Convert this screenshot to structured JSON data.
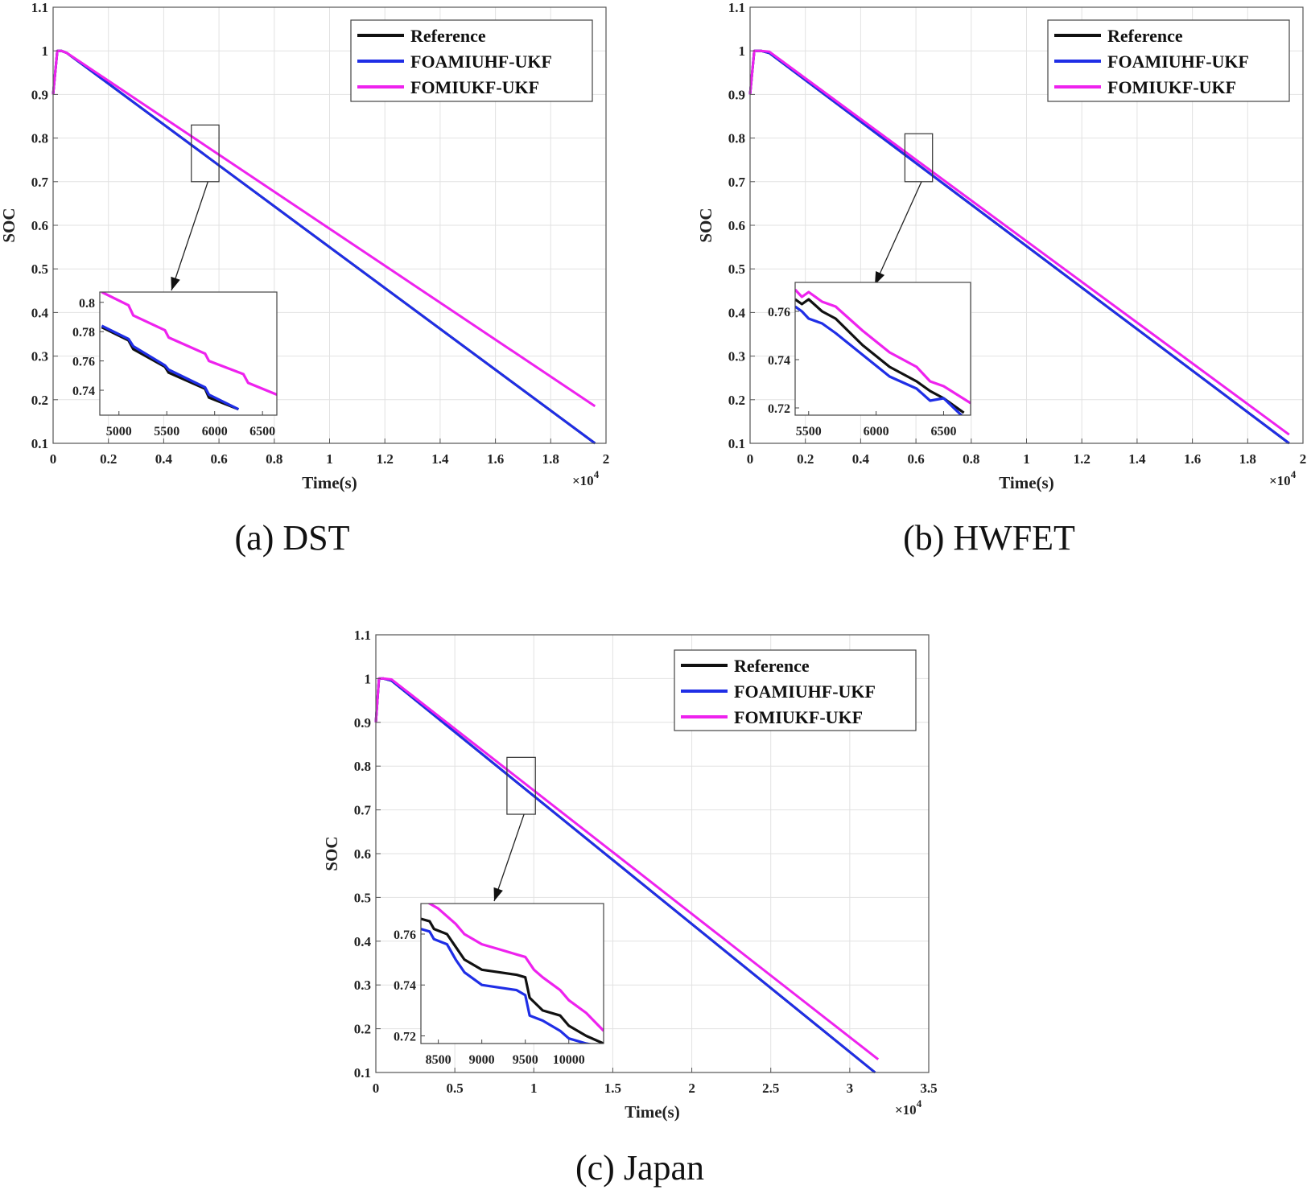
{
  "colors": {
    "reference": "#111111",
    "foamiuhf_ukf": "#1f2ee6",
    "fomiukf_ukf": "#ee22ee"
  },
  "chart_data": [
    {
      "id": "dst",
      "type": "line",
      "caption": "(a) DST",
      "xlabel": "Time(s)",
      "ylabel": "SOC",
      "x_multiplier": "×10",
      "x_multiplier_exp": "4",
      "xlim": [
        0,
        2
      ],
      "ylim": [
        0.1,
        1.1
      ],
      "xticks": [
        0,
        0.2,
        0.4,
        0.6,
        0.8,
        1,
        1.2,
        1.4,
        1.6,
        1.8,
        2
      ],
      "xtick_labels": [
        "0",
        "0.2",
        "0.4",
        "0.6",
        "0.8",
        "1",
        "1.2",
        "1.4",
        "1.6",
        "1.8",
        "2"
      ],
      "yticks": [
        0.1,
        0.2,
        0.3,
        0.4,
        0.5,
        0.6,
        0.7,
        0.8,
        0.9,
        1,
        1.1
      ],
      "ytick_labels": [
        "0.1",
        "0.2",
        "0.3",
        "0.4",
        "0.5",
        "0.6",
        "0.7",
        "0.8",
        "0.9",
        "1",
        "1.1"
      ],
      "grid": true,
      "legend_position": "top-right",
      "series": [
        {
          "name": "Reference",
          "color_key": "reference",
          "x": [
            0,
            0.015,
            0.03,
            0.05,
            1.96
          ],
          "y": [
            0.9,
            1.0,
            1.0,
            0.995,
            0.1
          ]
        },
        {
          "name": "FOAMIUHF-UKF",
          "color_key": "foamiuhf_ukf",
          "x": [
            0,
            0.015,
            0.03,
            0.05,
            1.96
          ],
          "y": [
            0.9,
            1.0,
            1.0,
            0.995,
            0.1
          ]
        },
        {
          "name": "FOMIUKF-UKF",
          "color_key": "fomiukf_ukf",
          "x": [
            0,
            0.015,
            0.03,
            0.05,
            1.96
          ],
          "y": [
            0.9,
            1.0,
            1.0,
            0.995,
            0.185
          ]
        }
      ],
      "zoom_region": {
        "xlim": [
          0.5,
          0.6
        ],
        "ylim": [
          0.7,
          0.83
        ]
      },
      "inset": {
        "xlim": [
          4800,
          6650
        ],
        "ylim": [
          0.723,
          0.807
        ],
        "xticks": [
          5000,
          5500,
          6000,
          6500
        ],
        "xtick_labels": [
          "5000",
          "5500",
          "6000",
          "6500"
        ],
        "yticks": [
          0.74,
          0.76,
          0.78,
          0.8
        ],
        "ytick_labels": [
          "0.74",
          "0.76",
          "0.78",
          "0.8"
        ],
        "series": [
          {
            "name": "Reference",
            "color_key": "reference",
            "x": [
              4820,
              5100,
              5150,
              5480,
              5520,
              5900,
              5940,
              6250
            ],
            "y": [
              0.783,
              0.774,
              0.768,
              0.756,
              0.752,
              0.741,
              0.735,
              0.727
            ]
          },
          {
            "name": "FOAMIUHF-UKF",
            "color_key": "foamiuhf_ukf",
            "x": [
              4820,
              5100,
              5150,
              5480,
              5520,
              5900,
              5940,
              6250
            ],
            "y": [
              0.784,
              0.775,
              0.77,
              0.757,
              0.754,
              0.742,
              0.737,
              0.727
            ]
          },
          {
            "name": "FOMIUKF-UKF",
            "color_key": "fomiukf_ukf",
            "x": [
              4820,
              5100,
              5150,
              5480,
              5520,
              5900,
              5940,
              6300,
              6350,
              6650
            ],
            "y": [
              0.807,
              0.798,
              0.791,
              0.781,
              0.776,
              0.765,
              0.76,
              0.751,
              0.745,
              0.737
            ]
          }
        ]
      }
    },
    {
      "id": "hwfet",
      "type": "line",
      "caption": "(b) HWFET",
      "xlabel": "Time(s)",
      "ylabel": "SOC",
      "x_multiplier": "×10",
      "x_multiplier_exp": "4",
      "xlim": [
        0,
        2
      ],
      "ylim": [
        0.1,
        1.1
      ],
      "xticks": [
        0,
        0.2,
        0.4,
        0.6,
        0.8,
        1,
        1.2,
        1.4,
        1.6,
        1.8,
        2
      ],
      "xtick_labels": [
        "0",
        "0.2",
        "0.4",
        "0.6",
        "0.8",
        "1",
        "1.2",
        "1.4",
        "1.6",
        "1.8",
        "2"
      ],
      "yticks": [
        0.1,
        0.2,
        0.3,
        0.4,
        0.5,
        0.6,
        0.7,
        0.8,
        0.9,
        1,
        1.1
      ],
      "ytick_labels": [
        "0.1",
        "0.2",
        "0.3",
        "0.4",
        "0.5",
        "0.6",
        "0.7",
        "0.8",
        "0.9",
        "1",
        "1.1"
      ],
      "grid": true,
      "legend_position": "top-right",
      "series": [
        {
          "name": "Reference",
          "color_key": "reference",
          "x": [
            0,
            0.015,
            0.04,
            0.07,
            1.95
          ],
          "y": [
            0.9,
            1.0,
            1.0,
            0.995,
            0.1
          ]
        },
        {
          "name": "FOAMIUHF-UKF",
          "color_key": "foamiuhf_ukf",
          "x": [
            0,
            0.015,
            0.04,
            0.07,
            1.95
          ],
          "y": [
            0.9,
            1.0,
            1.0,
            0.995,
            0.1
          ]
        },
        {
          "name": "FOMIUKF-UKF",
          "color_key": "fomiukf_ukf",
          "x": [
            0,
            0.015,
            0.04,
            0.07,
            1.95
          ],
          "y": [
            0.9,
            1.0,
            1.0,
            0.998,
            0.12
          ]
        }
      ],
      "zoom_region": {
        "xlim": [
          0.56,
          0.66
        ],
        "ylim": [
          0.7,
          0.81
        ]
      },
      "inset": {
        "xlim": [
          5400,
          6700
        ],
        "ylim": [
          0.717,
          0.772
        ],
        "xticks": [
          5500,
          6000,
          6500
        ],
        "xtick_labels": [
          "5500",
          "6000",
          "6500"
        ],
        "yticks": [
          0.72,
          0.74,
          0.76
        ],
        "ytick_labels": [
          "0.72",
          "0.74",
          "0.76"
        ],
        "series": [
          {
            "name": "Reference",
            "color_key": "reference",
            "x": [
              5400,
              5450,
              5500,
              5600,
              5700,
              5900,
              6100,
              6300,
              6400,
              6500,
              6650
            ],
            "y": [
              0.765,
              0.763,
              0.765,
              0.76,
              0.757,
              0.746,
              0.737,
              0.731,
              0.727,
              0.724,
              0.718
            ]
          },
          {
            "name": "FOAMIUHF-UKF",
            "color_key": "foamiuhf_ukf",
            "x": [
              5400,
              5450,
              5500,
              5600,
              5700,
              5900,
              6100,
              6300,
              6400,
              6500,
              6650
            ],
            "y": [
              0.762,
              0.76,
              0.757,
              0.755,
              0.751,
              0.742,
              0.733,
              0.728,
              0.723,
              0.724,
              0.716
            ]
          },
          {
            "name": "FOMIUKF-UKF",
            "color_key": "fomiukf_ukf",
            "x": [
              5400,
              5450,
              5500,
              5600,
              5700,
              5900,
              6100,
              6300,
              6400,
              6500,
              6700
            ],
            "y": [
              0.769,
              0.766,
              0.768,
              0.764,
              0.762,
              0.752,
              0.743,
              0.737,
              0.731,
              0.729,
              0.722
            ]
          }
        ]
      }
    },
    {
      "id": "japan",
      "type": "line",
      "caption": "(c) Japan",
      "xlabel": "Time(s)",
      "ylabel": "SOC",
      "x_multiplier": "×10",
      "x_multiplier_exp": "4",
      "xlim": [
        0,
        3.5
      ],
      "ylim": [
        0.1,
        1.1
      ],
      "xticks": [
        0,
        0.5,
        1,
        1.5,
        2,
        2.5,
        3,
        3.5
      ],
      "xtick_labels": [
        "0",
        "0.5",
        "1",
        "1.5",
        "2",
        "2.5",
        "3",
        "3.5"
      ],
      "yticks": [
        0.1,
        0.2,
        0.3,
        0.4,
        0.5,
        0.6,
        0.7,
        0.8,
        0.9,
        1,
        1.1
      ],
      "ytick_labels": [
        "0.1",
        "0.2",
        "0.3",
        "0.4",
        "0.5",
        "0.6",
        "0.7",
        "0.8",
        "0.9",
        "1",
        "1.1"
      ],
      "grid": true,
      "legend_position": "top-right",
      "series": [
        {
          "name": "Reference",
          "color_key": "reference",
          "x": [
            0,
            0.02,
            0.05,
            0.1,
            3.16
          ],
          "y": [
            0.9,
            1.0,
            1.0,
            0.995,
            0.1
          ]
        },
        {
          "name": "FOAMIUHF-UKF",
          "color_key": "foamiuhf_ukf",
          "x": [
            0,
            0.02,
            0.05,
            0.1,
            3.16
          ],
          "y": [
            0.9,
            1.0,
            1.0,
            0.995,
            0.1
          ]
        },
        {
          "name": "FOMIUKF-UKF",
          "color_key": "fomiukf_ukf",
          "x": [
            0,
            0.02,
            0.05,
            0.1,
            3.18
          ],
          "y": [
            0.9,
            1.0,
            1.0,
            0.998,
            0.13
          ]
        }
      ],
      "zoom_region": {
        "xlim": [
          0.83,
          1.01
        ],
        "ylim": [
          0.69,
          0.82
        ]
      },
      "inset": {
        "xlim": [
          8300,
          10400
        ],
        "ylim": [
          0.717,
          0.772
        ],
        "xticks": [
          8500,
          9000,
          9500,
          10000
        ],
        "xtick_labels": [
          "8500",
          "9000",
          "9500",
          "10000"
        ],
        "yticks": [
          0.72,
          0.74,
          0.76
        ],
        "ytick_labels": [
          "0.72",
          "0.74",
          "0.76"
        ],
        "series": [
          {
            "name": "Reference",
            "color_key": "reference",
            "x": [
              8300,
              8400,
              8450,
              8600,
              8700,
              8800,
              9000,
              9200,
              9400,
              9500,
              9550,
              9700,
              9900,
              10000,
              10200,
              10400
            ],
            "y": [
              0.766,
              0.765,
              0.762,
              0.76,
              0.755,
              0.75,
              0.746,
              0.745,
              0.744,
              0.743,
              0.735,
              0.73,
              0.728,
              0.724,
              0.72,
              0.717
            ]
          },
          {
            "name": "FOAMIUHF-UKF",
            "color_key": "foamiuhf_ukf",
            "x": [
              8300,
              8400,
              8450,
              8600,
              8700,
              8800,
              9000,
              9200,
              9400,
              9500,
              9550,
              9700,
              9900,
              10000,
              10200,
              10350
            ],
            "y": [
              0.762,
              0.761,
              0.758,
              0.756,
              0.75,
              0.745,
              0.74,
              0.739,
              0.738,
              0.736,
              0.728,
              0.726,
              0.722,
              0.719,
              0.717,
              0.716
            ]
          },
          {
            "name": "FOMIUKF-UKF",
            "color_key": "fomiukf_ukf",
            "x": [
              8300,
              8400,
              8500,
              8600,
              8700,
              8800,
              9000,
              9200,
              9400,
              9500,
              9600,
              9700,
              9900,
              10000,
              10200,
              10400
            ],
            "y": [
              0.775,
              0.772,
              0.77,
              0.767,
              0.764,
              0.76,
              0.756,
              0.754,
              0.752,
              0.751,
              0.746,
              0.743,
              0.738,
              0.734,
              0.729,
              0.722
            ]
          }
        ]
      }
    }
  ]
}
